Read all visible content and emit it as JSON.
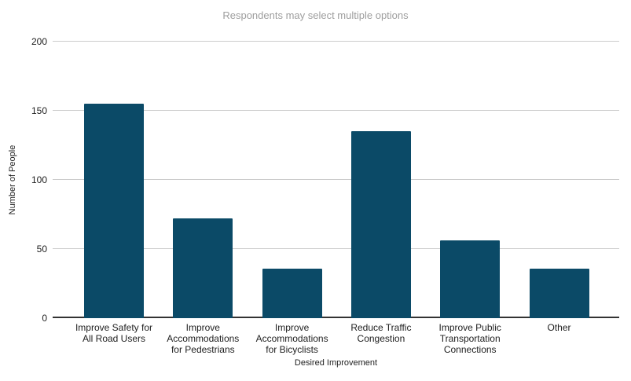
{
  "chart_data": {
    "type": "bar",
    "title": "Respondents may select multiple options",
    "xlabel": "Desired Improvement",
    "ylabel": "Number of People",
    "categories": [
      "Improve Safety for\nAll Road Users",
      "Improve\nAccommodations\nfor Pedestrians",
      "Improve\nAccommodations\nfor Bicyclists",
      "Reduce Traffic\nCongestion",
      "Improve Public\nTransportation\nConnections",
      "Other"
    ],
    "values": [
      155,
      72,
      36,
      135,
      56,
      36
    ],
    "ylim": [
      0,
      200
    ],
    "yticks": [
      0,
      50,
      100,
      150,
      200
    ],
    "grid": true,
    "legend": "none",
    "colors": {
      "bar": "#0b4a67",
      "title_text": "#9e9e9e",
      "axis_text": "#212121",
      "gridline": "#cccccc",
      "axis_line": "#333333",
      "background": "#ffffff"
    }
  }
}
